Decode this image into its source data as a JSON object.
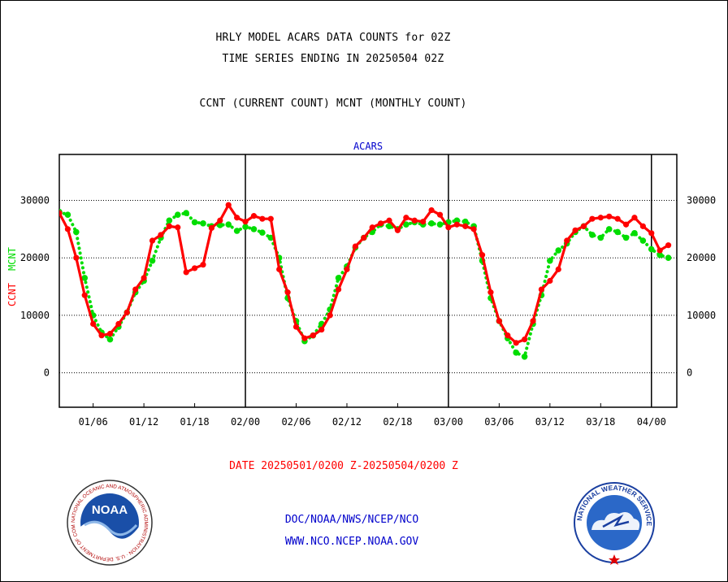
{
  "header": {
    "line1": "HRLY MODEL ACARS DATA COUNTS for 02Z",
    "line2": "TIME SERIES ENDING IN 20250504 02Z",
    "line3": "CCNT (CURRENT COUNT) MCNT (MONTHLY COUNT)"
  },
  "date_range": "DATE 20250501/0200 Z-20250504/0200 Z",
  "footer": {
    "link1": "DOC/NOAA/NWS/NCEP/NCO",
    "link2": "WWW.NCO.NCEP.NOAA.GOV"
  },
  "logos": {
    "noaa_text": "NOAA",
    "noaa_ring": "NATIONAL OCEANIC AND ATMOSPHERIC ADMINISTRATION · U.S. DEPARTMENT OF COMMERCE ·",
    "nws_ring": "NATIONAL WEATHER SERVICE"
  },
  "colors": {
    "ccnt": "#ff0000",
    "mcnt": "#00dd00",
    "title_blue": "#0000cc",
    "date_red": "#ff0000"
  },
  "chart_data": {
    "type": "line",
    "title": "ACARS",
    "ylabel_series": [
      "CCNT",
      "MCNT"
    ],
    "ylim": [
      -6000,
      38000
    ],
    "yticks": [
      0,
      10000,
      20000,
      30000
    ],
    "ytick_labels": [
      "0",
      "10000",
      "20000",
      "30000"
    ],
    "xlim": [
      0,
      73
    ],
    "xtick_positions": [
      4,
      10,
      16,
      22,
      28,
      34,
      40,
      46,
      52,
      58,
      64,
      70
    ],
    "xtick_labels": [
      "01/06",
      "01/12",
      "01/18",
      "02/00",
      "02/06",
      "02/12",
      "02/18",
      "03/00",
      "03/06",
      "03/12",
      "03/18",
      "04/00"
    ],
    "day_dividers": [
      22,
      46,
      70
    ],
    "grid": "horizontal dotted at y ticks",
    "series": [
      {
        "name": "CCNT",
        "style": "solid line with dots",
        "values": [
          27800,
          25000,
          20000,
          13500,
          8500,
          6500,
          6800,
          8500,
          10500,
          14500,
          16500,
          23000,
          24000,
          25500,
          25300,
          17500,
          18200,
          18800,
          25200,
          26500,
          29200,
          27000,
          26300,
          27300,
          26800,
          26800,
          18000,
          14000,
          8000,
          6000,
          6500,
          7500,
          10000,
          14500,
          18000,
          22000,
          23500,
          25300,
          26000,
          26500,
          24800,
          27000,
          26500,
          26300,
          28300,
          27500,
          25300,
          25800,
          25500,
          25000,
          20500,
          14000,
          9000,
          6500,
          5200,
          5800,
          9000,
          14500,
          16000,
          18000,
          23000,
          24800,
          25500,
          26800,
          27000,
          27200,
          26800,
          25800,
          27000,
          25500,
          24300,
          21300,
          22200
        ]
      },
      {
        "name": "MCNT",
        "style": "dotted",
        "values": [
          28000,
          27500,
          24500,
          16500,
          10000,
          7000,
          5800,
          8000,
          10500,
          14000,
          16000,
          19500,
          23500,
          26500,
          27500,
          27800,
          26200,
          26000,
          25500,
          25700,
          25800,
          24700,
          25400,
          25000,
          24400,
          23500,
          20000,
          13000,
          9000,
          5500,
          6500,
          8500,
          11000,
          16500,
          18500,
          21800,
          23500,
          24500,
          25800,
          25500,
          25000,
          25800,
          26200,
          25800,
          26000,
          25800,
          26200,
          26500,
          26300,
          25500,
          19500,
          13000,
          9000,
          6000,
          3500,
          2800,
          8500,
          13500,
          19500,
          21300,
          22500,
          24500,
          25500,
          24000,
          23500,
          25000,
          24500,
          23500,
          24300,
          23000,
          21500,
          20500,
          20000
        ]
      }
    ]
  }
}
